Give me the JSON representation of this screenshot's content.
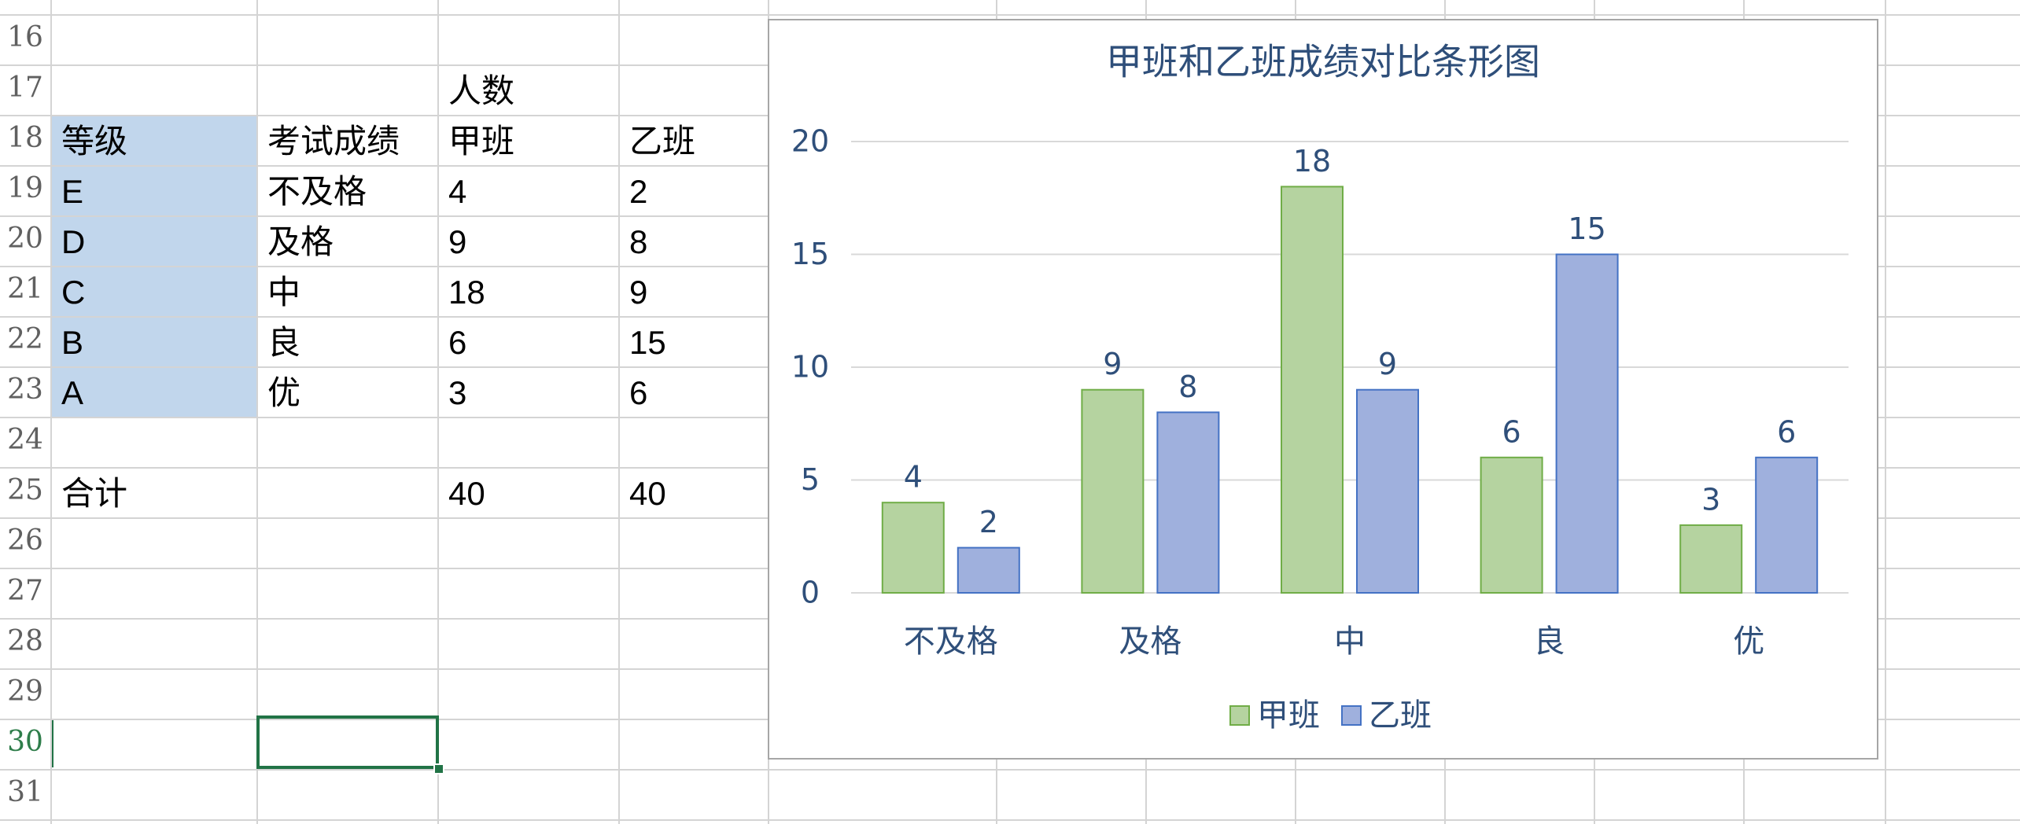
{
  "sheet": {
    "row_numbers": [
      "16",
      "17",
      "18",
      "19",
      "20",
      "21",
      "22",
      "23",
      "24",
      "25",
      "26",
      "27",
      "28",
      "29",
      "30",
      "31"
    ],
    "active_row": "30",
    "header_count": "人数",
    "header_level": "等级",
    "header_score": "考试成绩",
    "header_class_a": "甲班",
    "header_class_b": "乙班",
    "rows": [
      {
        "level": "E",
        "score": "不及格",
        "a": "4",
        "b": "2"
      },
      {
        "level": "D",
        "score": "及格",
        "a": "9",
        "b": "8"
      },
      {
        "level": "C",
        "score": "中",
        "a": "18",
        "b": "9"
      },
      {
        "level": "B",
        "score": "良",
        "a": "6",
        "b": "15"
      },
      {
        "level": "A",
        "score": "优",
        "a": "3",
        "b": "6"
      }
    ],
    "total_label": "合计",
    "total_a": "40",
    "total_b": "40",
    "level_fill_color": "#c1d6ec",
    "selection_color": "#217346"
  },
  "chart_data": {
    "type": "bar",
    "title": "甲班和乙班成绩对比条形图",
    "categories": [
      "不及格",
      "及格",
      "中",
      "良",
      "优"
    ],
    "series": [
      {
        "name": "甲班",
        "values": [
          4,
          9,
          18,
          6,
          3
        ],
        "fill": "#b5d3a0",
        "stroke": "#70ad47"
      },
      {
        "name": "乙班",
        "values": [
          2,
          8,
          9,
          15,
          6
        ],
        "fill": "#9fb0dd",
        "stroke": "#4472c4"
      }
    ],
    "ylim": [
      0,
      20
    ],
    "yticks": [
      "0",
      "5",
      "10",
      "15",
      "20"
    ],
    "grid": true,
    "legend": "bottom",
    "data_labels": true,
    "text_color": "#2f4f7a"
  }
}
